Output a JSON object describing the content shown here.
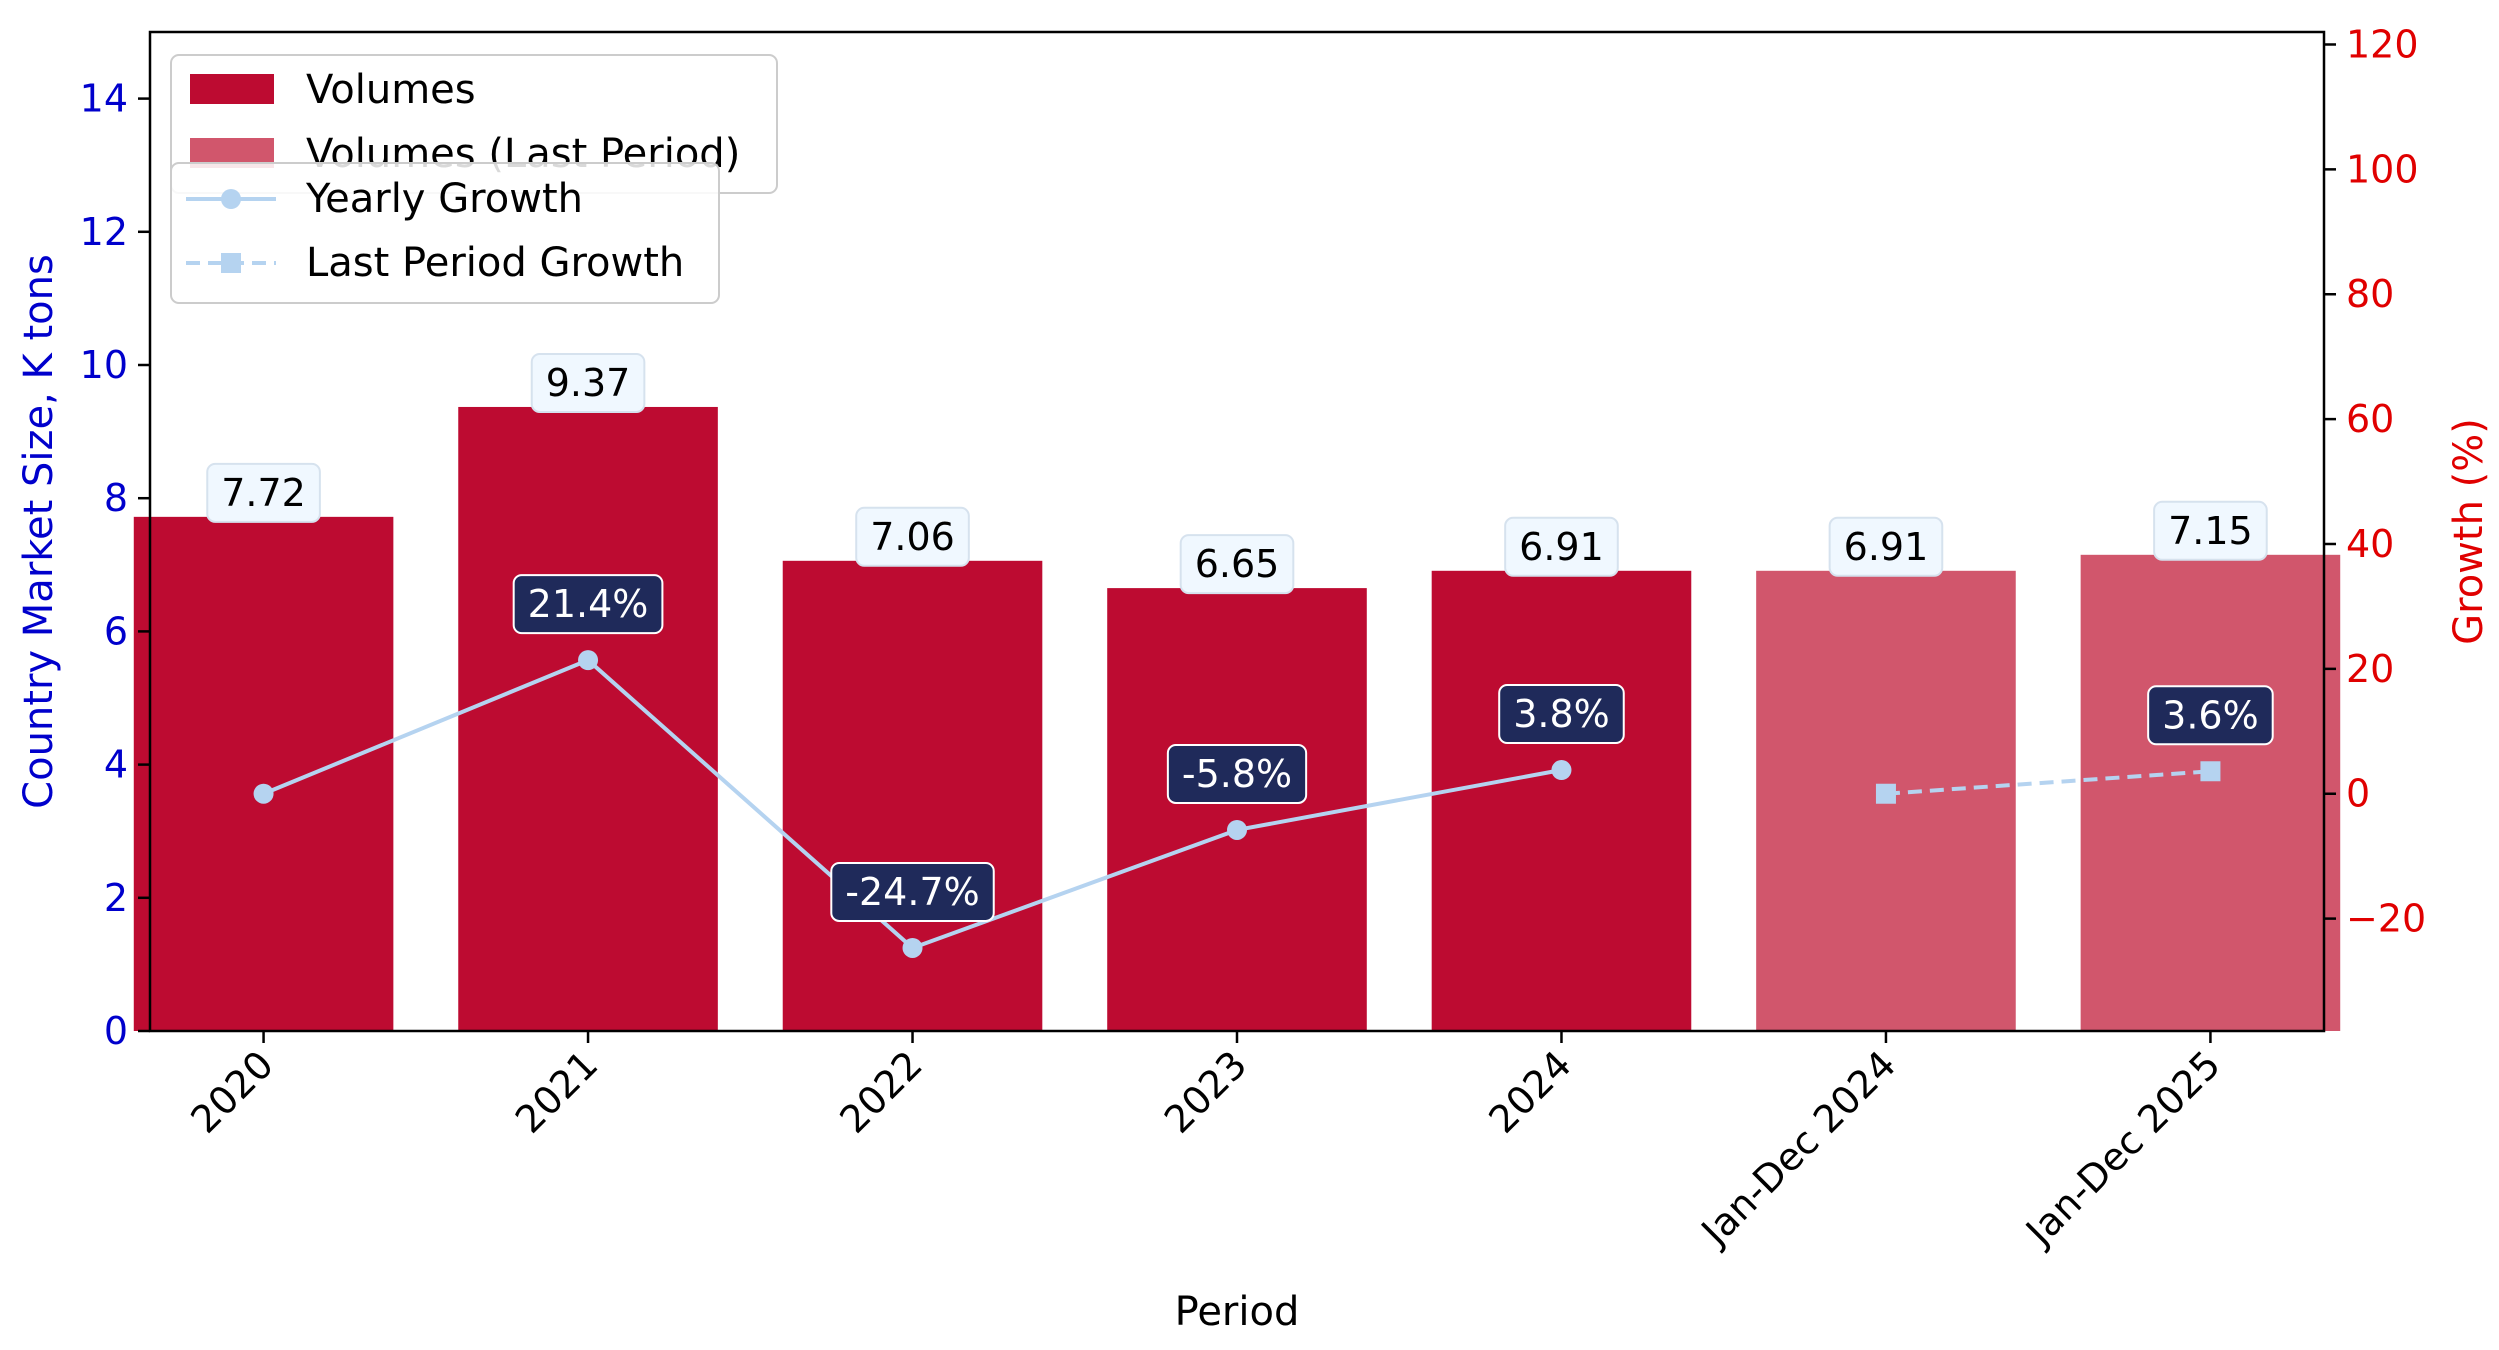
{
  "chart_data": {
    "type": "bar",
    "categories": [
      "2020",
      "2021",
      "2022",
      "2023",
      "2024",
      "Jan-Dec 2024",
      "Jan-Dec 2025"
    ],
    "series": [
      {
        "name": "Volumes",
        "axis": "left",
        "kind": "bar",
        "color": "#bd0b31",
        "values": [
          7.72,
          9.37,
          7.06,
          6.65,
          6.91,
          null,
          null
        ]
      },
      {
        "name": "Volumes (Last Period)",
        "axis": "left",
        "kind": "bar",
        "color": "#d1566c",
        "values": [
          null,
          null,
          null,
          null,
          null,
          6.91,
          7.15
        ]
      },
      {
        "name": "Yearly Growth",
        "axis": "right",
        "kind": "line",
        "style": "solid",
        "marker": "circle",
        "color": "#b5d3f0",
        "values": [
          0,
          21.4,
          -24.7,
          -5.8,
          3.8,
          null,
          null
        ]
      },
      {
        "name": "Last Period Growth",
        "axis": "right",
        "kind": "line",
        "style": "dashed",
        "marker": "square",
        "color": "#b5d3f0",
        "values": [
          null,
          null,
          null,
          null,
          null,
          0,
          3.6
        ]
      }
    ],
    "bar_labels": [
      "7.72",
      "9.37",
      "7.06",
      "6.65",
      "6.91",
      "6.91",
      "7.15"
    ],
    "growth_labels": [
      {
        "index": 1,
        "text": "21.4%"
      },
      {
        "index": 2,
        "text": "-24.7%"
      },
      {
        "index": 3,
        "text": "-5.8%"
      },
      {
        "index": 4,
        "text": "3.8%"
      },
      {
        "index": 6,
        "text": "3.6%"
      }
    ],
    "xlabel": "Period",
    "ylabel": "Country Market Size, K tons",
    "y2label": "Growth (%)",
    "ylim": [
      0,
      15
    ],
    "y2lim": [
      -38,
      122
    ],
    "yticks": [
      0,
      2,
      4,
      6,
      8,
      10,
      12,
      14
    ],
    "y2ticks": [
      -20,
      0,
      20,
      40,
      60,
      80,
      100,
      120
    ],
    "y2tick_labels": [
      "−20",
      "0",
      "20",
      "40",
      "60",
      "80",
      "100",
      "120"
    ],
    "grid": false,
    "legend_placement": "top-left",
    "colors": {
      "left_axis": "#0000cc",
      "right_axis": "#e00000",
      "bar_label_bg": "#f0f8ff",
      "growth_label_bg": "#1f2a5a"
    }
  }
}
